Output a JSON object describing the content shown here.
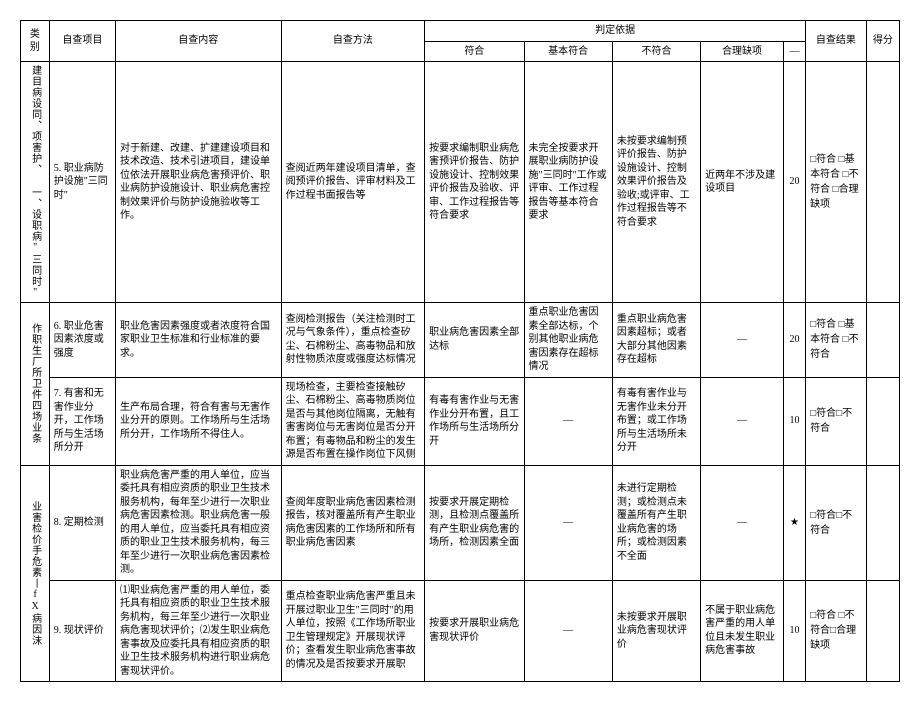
{
  "headers": {
    "category": "类别",
    "item": "自查项目",
    "content": "自查内容",
    "method": "自查方法",
    "judge_group": "判定依据",
    "j1": "符合",
    "j2": "基本符合",
    "j3": "不符合",
    "j4": "合理缺项",
    "jx": "—",
    "result": "自查结果",
    "score": "得分"
  },
  "cat_a": "一、设职病\"三同时\"",
  "cat_a_sub": "建目病设同、项害护、",
  "cat_b": "作职生厂所卫件四场业条",
  "cat_c": "业害检价手危素丨fX病因沫",
  "rows": [
    {
      "item": "5. 职业病防护设施\"三同时\"",
      "content": "对于新建、改建、扩建建设项目和技术改造、技术引进项目，建设单位依法开展职业病危害预评价、职业病防护设施设计、职业病危害控制效果评价与防护设施验收等工作。",
      "method": "查阅近两年建设项目清单，查阅预评价报告、评审材料及工作过程书面报告等",
      "j1": "按要求编制职业病危害预评价报告、防护设施设计、控制效果评价报告及验收、评审、工作过程报告等符合要求",
      "j2": "未完全按要求开展职业病防护设施\"三同时\"工作或评审、工作过程报告等基本符合要求",
      "j3": "未按要求编制预评价报告、防护设施设计、控制效果评价报告及验收;或评审、工作过程报告等不符合要求",
      "j4": "近两年不涉及建设项目",
      "jx": "20",
      "result": "□符合\n□基本符合\n□不符合\n□合理缺项",
      "score": ""
    },
    {
      "item": "6. 职业危害因素浓度或强度",
      "content": "职业危害因素强度或者浓度符合国家职业卫生标准和行业标准的要求。",
      "method": "查阅检测报告（关注检测时工况与气象条件），重点检查矽尘、石棉粉尘、高毒物品和放射性物质浓度或强度达标情况",
      "j1": "职业病危害因素全部达标",
      "j2": "重点职业危害因素全部达标，个别其他职业病危害因素存在超标情况",
      "j3": "重点职业病危害因素超标；或者大部分其他因素存在超标",
      "j4": "—",
      "jx": "20",
      "result": "□符合\n□基本符合\n□不符合",
      "score": ""
    },
    {
      "item": "7. 有害和无害作业分开，工作场所与生活场所分开",
      "content": "生产布局合理，符合有害与无害作业分开的原则。工作场所与生活场所分开，工作场所不得住人。",
      "method": "现场检查，主要检查接触矽尘、石棉粉尘、高毒物质岗位是否与其他岗位隔离，无触有害害岗位与无害岗位是否分开布置；有毒物品和粉尘的发生源是否布置在操作岗位下风侧",
      "j1": "有毒有害作业与无害作业分开布置，且工作场所与生活场所分开",
      "j2": "—",
      "j3": "有毒有害作业与无害作业未分开布置；或工作场所与生活场所未分开",
      "j4": "—",
      "jx": "10",
      "result": "□符合□不符合",
      "score": ""
    },
    {
      "item": "8. 定期检测",
      "content": "职业病危害严重的用人单位，应当委托具有相应资质的职业卫生技术服务机构，每年至少进行一次职业病危害因素检测。职业病危害一般的用人单位，应当委托具有相应资质的职业卫生技术服务机构，每三年至少进行一次职业病危害因素检测。",
      "method": "查阅年度职业病危害因素检测报告，核对覆盖所有产生职业病危害因素的工作场所和所有职业病危害因素",
      "j1": "按要求开展定期检测，且检测点覆盖所有产生职业病危害的场所，检测因素全面",
      "j2": "—",
      "j3": "未进行定期检测；或检测点未覆盖所有产生职业病危害的场所；或检测因素不全面",
      "j4": "—",
      "jx": "★",
      "result": "□符合□不符合",
      "score": ""
    },
    {
      "item": "9. 现状评价",
      "content": "⑴职业病危害严重的用人单位，委托具有相应资质的职业卫生技术服务机构，每三年至少进行一次职业病危害现状评价；⑵发生职业病危害事故及应委托具有相应资质的职业卫生技术服务机构进行职业病危害现状评价。",
      "method": "重点检查职业病危害严重且未开展过职业卫生\"三同时\"的用人单位，按照《工作场所职业卫生管理规定》开展现状评价；查看发生职业病危害事故的情况及是否按要求开展职",
      "j1": "按要求开展职业病危害现状评价",
      "j2": "—",
      "j3": "未按要求开展职业病危害现状评价",
      "j4": "不属于职业病危害严重的用人单位且未发生职业病危害事故",
      "jx": "10",
      "result": "□符合\n□不符合□合理缺项",
      "score": ""
    }
  ]
}
